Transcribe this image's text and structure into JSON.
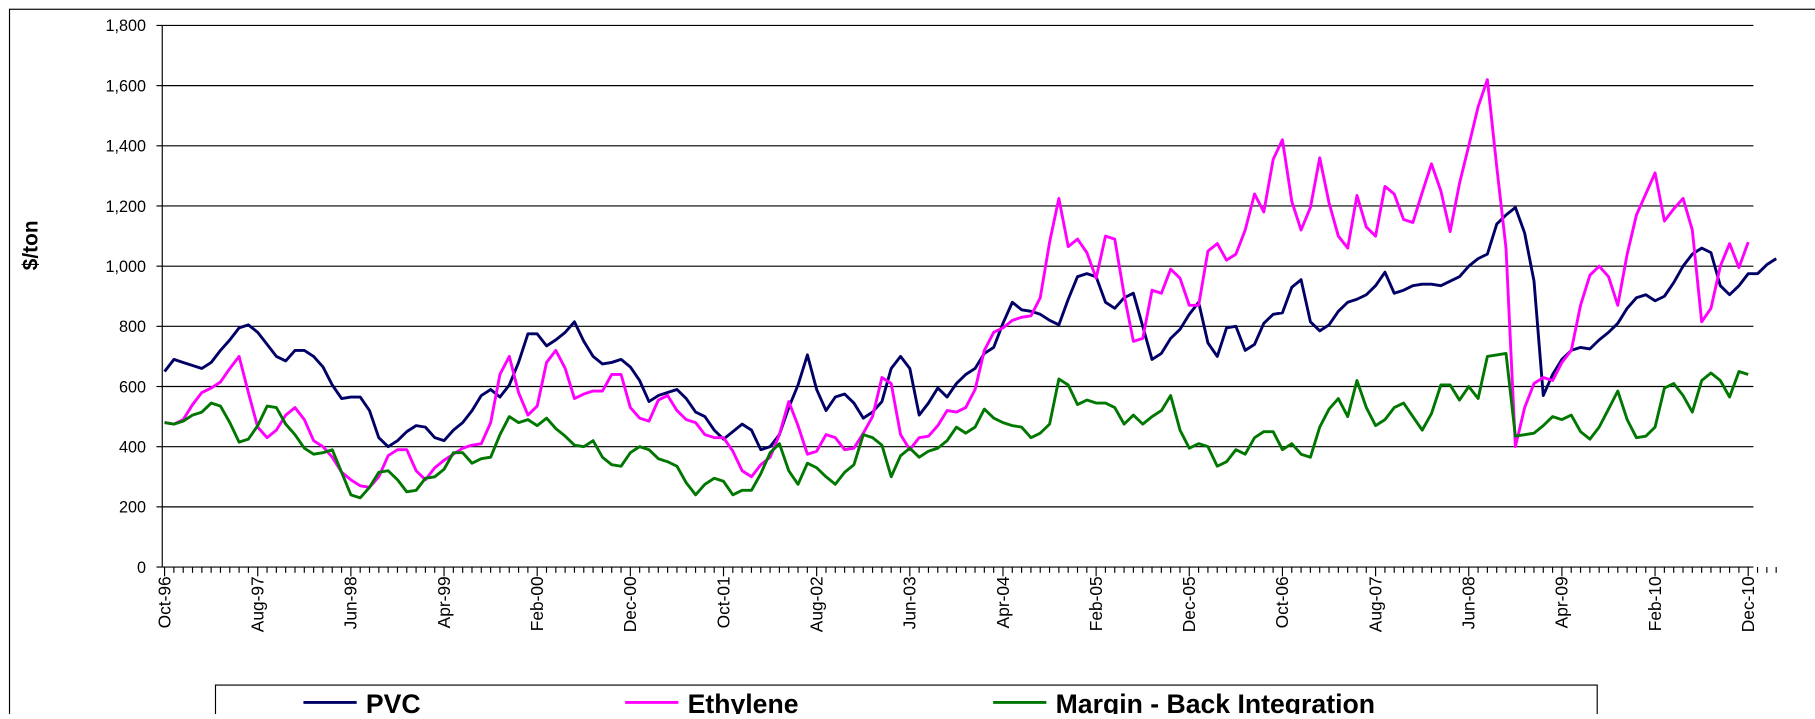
{
  "chart_data": {
    "type": "line",
    "y_label": "$/ton",
    "categories": [
      "Oct-96",
      null,
      null,
      null,
      null,
      null,
      null,
      null,
      null,
      null,
      "Aug-97",
      null,
      null,
      null,
      null,
      null,
      null,
      null,
      null,
      null,
      "Jun-98",
      null,
      null,
      null,
      null,
      null,
      null,
      null,
      null,
      null,
      "Apr-99",
      null,
      null,
      null,
      null,
      null,
      null,
      null,
      null,
      null,
      "Feb-00",
      null,
      null,
      null,
      null,
      null,
      null,
      null,
      null,
      null,
      "Dec-00",
      null,
      null,
      null,
      null,
      null,
      null,
      null,
      null,
      null,
      "Oct-01",
      null,
      null,
      null,
      null,
      null,
      null,
      null,
      null,
      null,
      "Aug-02",
      null,
      null,
      null,
      null,
      null,
      null,
      null,
      null,
      null,
      "Jun-03",
      null,
      null,
      null,
      null,
      null,
      null,
      null,
      null,
      null,
      "Apr-04",
      null,
      null,
      null,
      null,
      null,
      null,
      null,
      null,
      null,
      "Feb-05",
      null,
      null,
      null,
      null,
      null,
      null,
      null,
      null,
      null,
      "Dec-05",
      null,
      null,
      null,
      null,
      null,
      null,
      null,
      null,
      null,
      "Oct-06",
      null,
      null,
      null,
      null,
      null,
      null,
      null,
      null,
      null,
      "Aug-07",
      null,
      null,
      null,
      null,
      null,
      null,
      null,
      null,
      null,
      "Jun-08",
      null,
      null,
      null,
      null,
      null,
      null,
      null,
      null,
      null,
      "Apr-09",
      null,
      null,
      null,
      null,
      null,
      null,
      null,
      null,
      null,
      "Feb-10",
      null,
      null,
      null,
      null,
      null,
      null,
      null,
      null,
      null,
      "Dec-10",
      null,
      null,
      null
    ],
    "series": [
      {
        "name": "PVC",
        "color": "#000066",
        "values": [
          650,
          690,
          680,
          670,
          660,
          680,
          720,
          755,
          795,
          805,
          780,
          740,
          700,
          685,
          720,
          720,
          700,
          665,
          605,
          560,
          565,
          565,
          520,
          430,
          400,
          420,
          450,
          470,
          465,
          430,
          420,
          455,
          480,
          520,
          570,
          590,
          565,
          605,
          680,
          775,
          775,
          735,
          755,
          780,
          815,
          750,
          700,
          675,
          680,
          690,
          665,
          620,
          550,
          570,
          580,
          590,
          560,
          515,
          500,
          455,
          425,
          450,
          475,
          455,
          390,
          400,
          440,
          530,
          605,
          705,
          590,
          520,
          565,
          575,
          545,
          495,
          515,
          550,
          660,
          700,
          660,
          505,
          545,
          595,
          565,
          610,
          640,
          660,
          710,
          730,
          810,
          880,
          855,
          850,
          840,
          820,
          805,
          890,
          965,
          975,
          965,
          880,
          860,
          895,
          910,
          800,
          690,
          710,
          760,
          790,
          840,
          880,
          745,
          700,
          795,
          800,
          720,
          740,
          810,
          840,
          845,
          930,
          955,
          815,
          785,
          805,
          850,
          880,
          890,
          905,
          935,
          980,
          910,
          920,
          935,
          940,
          940,
          935,
          950,
          965,
          1000,
          1025,
          1040,
          1140,
          1170,
          1195,
          1110,
          950,
          570,
          640,
          690,
          720,
          730,
          725,
          755,
          780,
          810,
          860,
          895,
          905,
          885,
          900,
          945,
          1000,
          1040,
          1060,
          1045,
          935,
          905,
          935,
          975,
          975,
          1005,
          1025
        ]
      },
      {
        "name": "Ethylene",
        "color": "#ff00ff",
        "values": [
          480,
          475,
          490,
          540,
          580,
          595,
          615,
          660,
          700,
          580,
          465,
          430,
          455,
          505,
          530,
          490,
          420,
          400,
          365,
          315,
          290,
          270,
          265,
          300,
          370,
          390,
          390,
          320,
          290,
          330,
          355,
          375,
          395,
          405,
          410,
          480,
          640,
          700,
          580,
          505,
          535,
          680,
          720,
          660,
          560,
          575,
          585,
          585,
          640,
          640,
          530,
          495,
          485,
          555,
          570,
          520,
          490,
          480,
          440,
          430,
          430,
          385,
          320,
          300,
          340,
          365,
          440,
          550,
          470,
          375,
          385,
          440,
          430,
          390,
          395,
          445,
          500,
          630,
          610,
          440,
          390,
          430,
          435,
          470,
          520,
          515,
          530,
          590,
          720,
          780,
          795,
          820,
          830,
          835,
          895,
          1080,
          1225,
          1065,
          1090,
          1045,
          960,
          1100,
          1090,
          905,
          750,
          760,
          920,
          910,
          990,
          960,
          870,
          870,
          1050,
          1075,
          1020,
          1040,
          1120,
          1240,
          1180,
          1355,
          1420,
          1215,
          1120,
          1195,
          1360,
          1210,
          1100,
          1060,
          1235,
          1130,
          1100,
          1265,
          1240,
          1155,
          1145,
          1245,
          1340,
          1250,
          1115,
          1275,
          1400,
          1530,
          1620,
          1330,
          1060,
          400,
          530,
          610,
          630,
          620,
          680,
          720,
          870,
          970,
          1000,
          965,
          870,
          1040,
          1170,
          1240,
          1310,
          1150,
          1190,
          1225,
          1120,
          815,
          860,
          1000,
          1075,
          995,
          1080,
          null,
          null,
          null
        ]
      },
      {
        "name": "Margin - Back Integration",
        "color": "#007700",
        "values": [
          480,
          475,
          485,
          505,
          515,
          545,
          535,
          480,
          415,
          425,
          470,
          535,
          530,
          475,
          440,
          395,
          375,
          380,
          390,
          315,
          240,
          230,
          265,
          315,
          320,
          290,
          250,
          255,
          295,
          300,
          325,
          380,
          380,
          345,
          360,
          365,
          440,
          500,
          480,
          490,
          470,
          495,
          460,
          435,
          405,
          400,
          420,
          365,
          340,
          335,
          380,
          400,
          390,
          360,
          350,
          335,
          280,
          240,
          275,
          295,
          285,
          240,
          255,
          255,
          310,
          380,
          410,
          320,
          275,
          345,
          330,
          300,
          275,
          315,
          340,
          440,
          430,
          405,
          300,
          370,
          395,
          365,
          385,
          395,
          420,
          465,
          445,
          465,
          525,
          495,
          480,
          470,
          465,
          430,
          445,
          475,
          625,
          605,
          540,
          555,
          545,
          545,
          530,
          475,
          505,
          475,
          500,
          520,
          570,
          455,
          395,
          410,
          400,
          335,
          350,
          390,
          375,
          430,
          450,
          450,
          390,
          410,
          375,
          365,
          465,
          525,
          560,
          500,
          620,
          530,
          470,
          490,
          530,
          545,
          500,
          455,
          510,
          605,
          605,
          555,
          600,
          560,
          700,
          705,
          710,
          435,
          440,
          445,
          470,
          500,
          490,
          505,
          450,
          425,
          465,
          525,
          585,
          490,
          430,
          435,
          465,
          595,
          610,
          570,
          515,
          620,
          645,
          620,
          565,
          650,
          640,
          null,
          null,
          null
        ]
      }
    ],
    "ylim": [
      0,
      1800
    ],
    "yticks": [
      0,
      200,
      400,
      600,
      800,
      {
        "value": 1000,
        "label": "1,000"
      },
      {
        "value": 1200,
        "label": "1,200"
      },
      {
        "value": 1400,
        "label": "1,400"
      },
      {
        "value": 1600,
        "label": "1,600"
      },
      {
        "value": 1800,
        "label": "1,800"
      }
    ],
    "grid": true,
    "legend": "bottom"
  }
}
